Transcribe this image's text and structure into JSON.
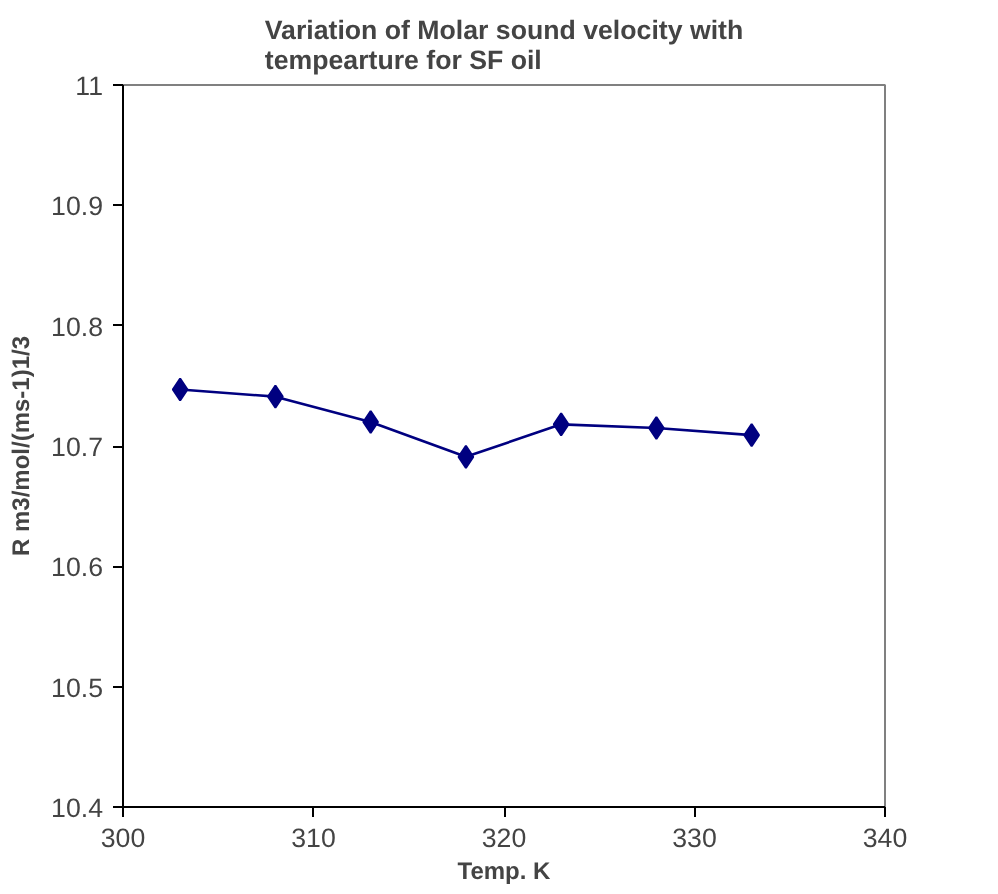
{
  "chart_data": {
    "type": "line",
    "title": "Variation of Molar sound velocity with\ntempearture for SF oil",
    "xlabel": "Temp. K",
    "ylabel": "R m3/mol/(ms-1)1/3",
    "x": [
      303,
      308,
      313,
      318,
      323,
      328,
      333
    ],
    "series": [
      {
        "color": "#000080",
        "values": [
          10.747,
          10.741,
          10.72,
          10.691,
          10.718,
          10.715,
          10.709
        ]
      }
    ],
    "xlim": [
      300,
      340
    ],
    "xticks": [
      300,
      310,
      320,
      330,
      340
    ],
    "ylim": [
      10.4,
      11
    ],
    "yticks": [
      10.4,
      10.5,
      10.6,
      10.7,
      10.8,
      10.9,
      11
    ],
    "grid": false,
    "marker": "diamond",
    "line_style": "solid"
  }
}
